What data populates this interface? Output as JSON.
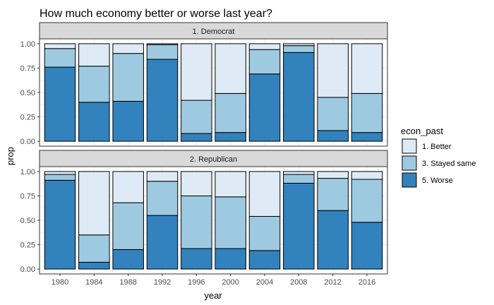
{
  "chart_data": {
    "type": "bar",
    "stacked": true,
    "title": "How much economy better or worse last year?",
    "xlabel": "year",
    "ylabel": "prop",
    "ylim": [
      0,
      1.0
    ],
    "yticks": [
      "0.00",
      "0.25",
      "0.50",
      "0.75",
      "1.00"
    ],
    "grid": true,
    "legend": {
      "title": "econ_past",
      "position": "right",
      "entries": [
        {
          "label": "1. Better",
          "color": "#deebf7"
        },
        {
          "label": "3. Stayed same",
          "color": "#9ecae1"
        },
        {
          "label": "5. Worse",
          "color": "#3182bd"
        }
      ]
    },
    "categories": [
      "1980",
      "1984",
      "1988",
      "1992",
      "1996",
      "2000",
      "2004",
      "2008",
      "2012",
      "2016"
    ],
    "panels": [
      {
        "name": "1. Democrat",
        "series": [
          {
            "name": "5. Worse",
            "values": [
              0.76,
              0.4,
              0.41,
              0.84,
              0.08,
              0.09,
              0.69,
              0.91,
              0.11,
              0.09
            ]
          },
          {
            "name": "3. Stayed same",
            "values": [
              0.19,
              0.37,
              0.49,
              0.15,
              0.34,
              0.4,
              0.25,
              0.07,
              0.34,
              0.4
            ]
          },
          {
            "name": "1. Better",
            "values": [
              0.05,
              0.23,
              0.1,
              0.01,
              0.58,
              0.51,
              0.06,
              0.02,
              0.55,
              0.51
            ]
          }
        ]
      },
      {
        "name": "2. Republican",
        "series": [
          {
            "name": "5. Worse",
            "values": [
              0.91,
              0.07,
              0.2,
              0.55,
              0.21,
              0.21,
              0.19,
              0.88,
              0.6,
              0.48
            ]
          },
          {
            "name": "3. Stayed same",
            "values": [
              0.06,
              0.28,
              0.48,
              0.35,
              0.54,
              0.53,
              0.35,
              0.09,
              0.33,
              0.44
            ]
          },
          {
            "name": "1. Better",
            "values": [
              0.03,
              0.65,
              0.32,
              0.1,
              0.25,
              0.26,
              0.46,
              0.03,
              0.07,
              0.08
            ]
          }
        ]
      }
    ]
  }
}
